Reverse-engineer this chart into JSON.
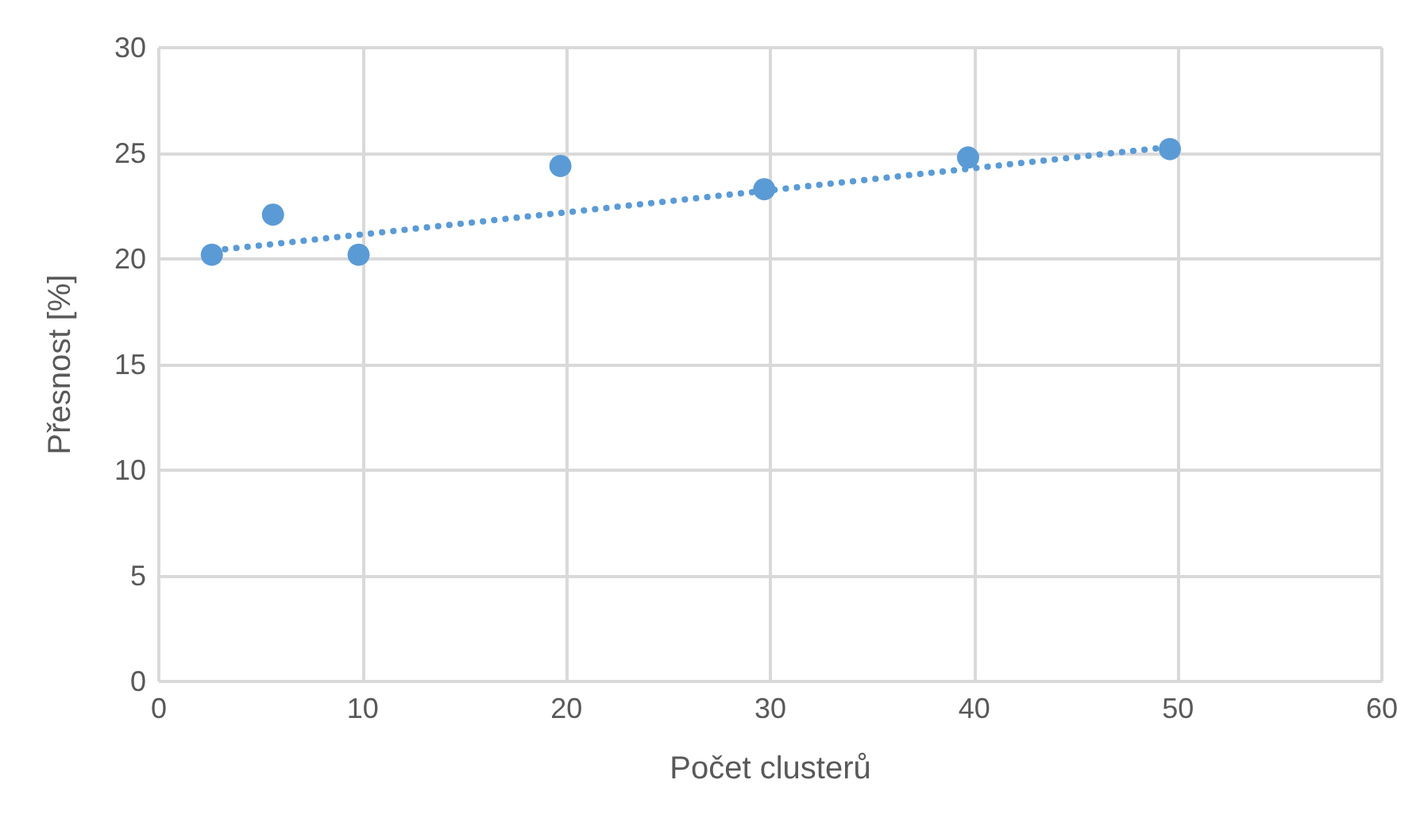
{
  "chart_data": {
    "type": "scatter",
    "xlabel": "Počet clusterů",
    "ylabel": "Přesnost [%]",
    "xlim": [
      0,
      60
    ],
    "xticks": [
      0,
      10,
      20,
      30,
      40,
      50,
      60
    ],
    "ylim": [
      0,
      30
    ],
    "yticks": [
      0,
      5,
      10,
      15,
      20,
      25,
      30
    ],
    "grid": true,
    "marker": "circle",
    "series": [
      {
        "color": "#5b9bd5",
        "x": [
          2.6,
          5.6,
          9.8,
          19.7,
          29.7,
          39.7,
          49.6
        ],
        "values": [
          20.2,
          22.1,
          20.2,
          24.4,
          23.3,
          24.8,
          25.2
        ]
      },
      {
        "type": "line",
        "color": "#5b9bd5",
        "line_style": "dotted",
        "marker": "none",
        "x": [
          2.7,
          49.6
        ],
        "values": [
          20.4,
          25.3
        ]
      }
    ]
  }
}
